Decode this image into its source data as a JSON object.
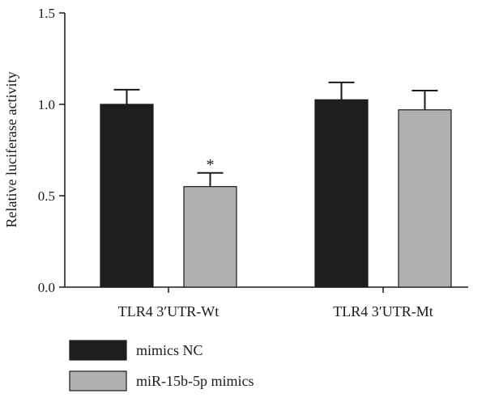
{
  "chart_data": {
    "type": "bar",
    "title": "",
    "xlabel": "",
    "ylabel": "Relative luciferase activity",
    "ylim": [
      0,
      1.5
    ],
    "yticks": [
      "0.0",
      "0.5",
      "1.0",
      "1.5"
    ],
    "grid": false,
    "legend_position": "bottom-left",
    "categories": [
      "TLR4 3′UTR-Wt",
      "TLR4 3′UTR-Mt"
    ],
    "series": [
      {
        "name": "mimics NC",
        "color": "#1f1f1f",
        "values": [
          1.0,
          1.025
        ],
        "errors": [
          0.08,
          0.095
        ]
      },
      {
        "name": "miR-15b-5p mimics",
        "color": "#b0b0b0",
        "values": [
          0.55,
          0.97
        ],
        "errors": [
          0.075,
          0.105
        ]
      }
    ],
    "annotations": [
      {
        "text": "*",
        "category_index": 0,
        "series_index": 1
      }
    ]
  }
}
